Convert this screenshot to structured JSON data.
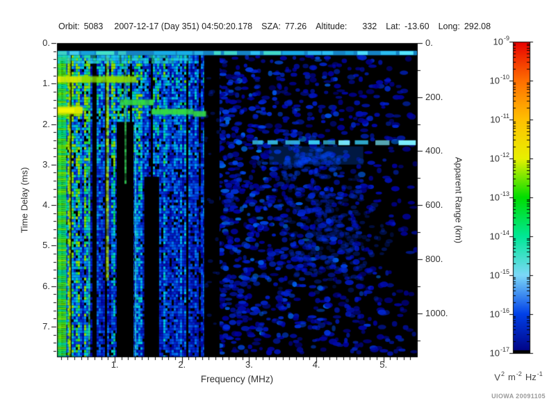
{
  "header": {
    "orbit_label": "Orbit:",
    "orbit": "5083",
    "datetime": "2007-12-17 (Day 351) 04:50:20.178",
    "sza_label": "SZA:",
    "sza": "77.26",
    "altitude_label": "Altitude:",
    "altitude": "332",
    "lat_label": "Lat:",
    "lat": "-13.60",
    "long_label": "Long:",
    "long": "292.08"
  },
  "credit": "UIOWA 20091105",
  "chart_data": {
    "type": "heatmap",
    "title": "",
    "xlabel": "Frequency (MHz)",
    "ylabel_left": "Time Delay (ms)",
    "ylabel_right": "Apparent Range (km)",
    "x_range": [
      0.14,
      5.5
    ],
    "x_ticks": [
      "1.",
      "2.",
      "3.",
      "4.",
      "5."
    ],
    "x_tick_values": [
      1,
      2,
      3,
      4,
      5
    ],
    "x_minor_step": 0.1,
    "y_range_ms": [
      0,
      7.74
    ],
    "y_ticks_left": [
      "0.",
      "1.",
      "2.",
      "3.",
      "4.",
      "5.",
      "6.",
      "7."
    ],
    "y_tick_values_left": [
      0,
      1,
      2,
      3,
      4,
      5,
      6,
      7
    ],
    "y_minor_step_ms": 0.2,
    "y_ticks_right": [
      "0.",
      "200.",
      "400.",
      "600.",
      "800.",
      "1000."
    ],
    "y_tick_values_right_km": [
      0,
      200,
      400,
      600,
      800,
      1000
    ],
    "km_per_ms": 149.9,
    "grid": false,
    "noise_seed": 11,
    "colorbar": {
      "base": "10",
      "exponents": [
        -9,
        -10,
        -11,
        -12,
        -13,
        -14,
        -15,
        -16,
        -17
      ],
      "colors": [
        "#e80000",
        "#ff6e00",
        "#ffc000",
        "#e8f000",
        "#00dd00",
        "#00e896",
        "#7cd8f8",
        "#0040e8",
        "#000080"
      ],
      "unit": {
        "b1": "V",
        "e1": "2",
        "b2": "m",
        "e2": "-2",
        "b3": "Hz",
        "e3": "-1"
      }
    },
    "palette": {
      "background": "#000000",
      "ramp": [
        [
          0,
          "#000000"
        ],
        [
          0.14,
          "#0000a0"
        ],
        [
          0.32,
          "#0030e0"
        ],
        [
          0.5,
          "#0090ff"
        ],
        [
          0.64,
          "#00d8e8"
        ],
        [
          0.76,
          "#00d870"
        ],
        [
          0.87,
          "#55e000"
        ],
        [
          1,
          "#e8ee00"
        ]
      ]
    },
    "features": {
      "top_black_band_ms": [
        0,
        0.18
      ],
      "top_line": {
        "tau": [
          0.19,
          0.3
        ],
        "f": [
          0.14,
          5.5
        ],
        "colors": [
          "#55e8ff",
          "#2fc8f8",
          "#18b0e8",
          "#48e8c8"
        ],
        "base_color": "#1890d8",
        "thick_until_f": 2.1,
        "thick_tau": 0.46
      },
      "left_green_column": {
        "f": [
          0.14,
          0.28
        ]
      },
      "vertical_lines": [
        {
          "f": 0.33,
          "tau": [
            0.3,
            7.74
          ],
          "color": "#b8e800",
          "w": 3
        },
        {
          "f": 0.62,
          "tau": [
            0.3,
            7.74
          ],
          "color": "#33dd66",
          "w": 2
        },
        {
          "f": 0.89,
          "tau": [
            0.3,
            5.8
          ],
          "color": "#b8e800",
          "w": 4
        },
        {
          "f": 1.16,
          "tau": [
            0.3,
            3.4
          ],
          "color": "#33cc55",
          "w": 3
        },
        {
          "f": 1.31,
          "tau": [
            1.8,
            7.74
          ],
          "color": "#33e0cc",
          "w": 2
        }
      ],
      "black_gaps": [
        {
          "f": [
            1.03,
            1.28
          ],
          "tau": [
            1.95,
            7.74
          ]
        },
        {
          "f": [
            1.44,
            1.66
          ],
          "tau": [
            3.3,
            7.74
          ]
        },
        {
          "f": [
            2.33,
            2.56
          ],
          "tau": [
            0.31,
            7.74
          ]
        }
      ],
      "echo_trace": [
        {
          "f": [
            0.14,
            1.3
          ],
          "tau": [
            0.82,
            0.97
          ],
          "color": "#8cdc00",
          "left_color": "#e8ee00"
        },
        {
          "f": [
            1.08,
            1.52
          ],
          "tau": [
            1.4,
            1.53
          ],
          "color": "#33d844"
        },
        {
          "f": [
            1.55,
            2.3
          ],
          "tau": [
            1.63,
            1.76
          ],
          "color": "#33d844",
          "dip": true
        }
      ],
      "yellow_blob": {
        "f": [
          0.14,
          0.52
        ],
        "tau": [
          1.58,
          1.74
        ],
        "color": "#dce800",
        "core": "#f2f600"
      },
      "surface_line": {
        "tau": [
          2.4,
          2.52
        ],
        "f": [
          3.05,
          5.5
        ],
        "color": "#38c8f0",
        "bright_color": "#7ceeff"
      },
      "surface_glow": {
        "f": [
          3.3,
          4.7
        ],
        "tau": [
          2.55,
          3.0
        ],
        "color": "#0055ee",
        "alpha": 0.28
      },
      "noise_bands": [
        [
          0.5,
          0.5
        ],
        [
          0.87,
          0.9
        ],
        [
          1.28,
          0.55
        ],
        [
          1.68,
          0.85
        ],
        [
          2.1,
          0.35
        ],
        [
          2.55,
          0.5
        ],
        [
          2.9,
          0.3
        ],
        [
          4.1,
          0.25
        ]
      ],
      "clouds": [
        {
          "f": 4.25,
          "tau": 4.7,
          "sf": 0.55,
          "st": 1.15,
          "n": 260,
          "color": "#0030dd",
          "alpha": 0.4
        },
        {
          "f": 3.9,
          "tau": 2.9,
          "sf": 0.45,
          "st": 0.35,
          "n": 90,
          "color": "#0040ee",
          "alpha": 0.45
        }
      ]
    }
  }
}
